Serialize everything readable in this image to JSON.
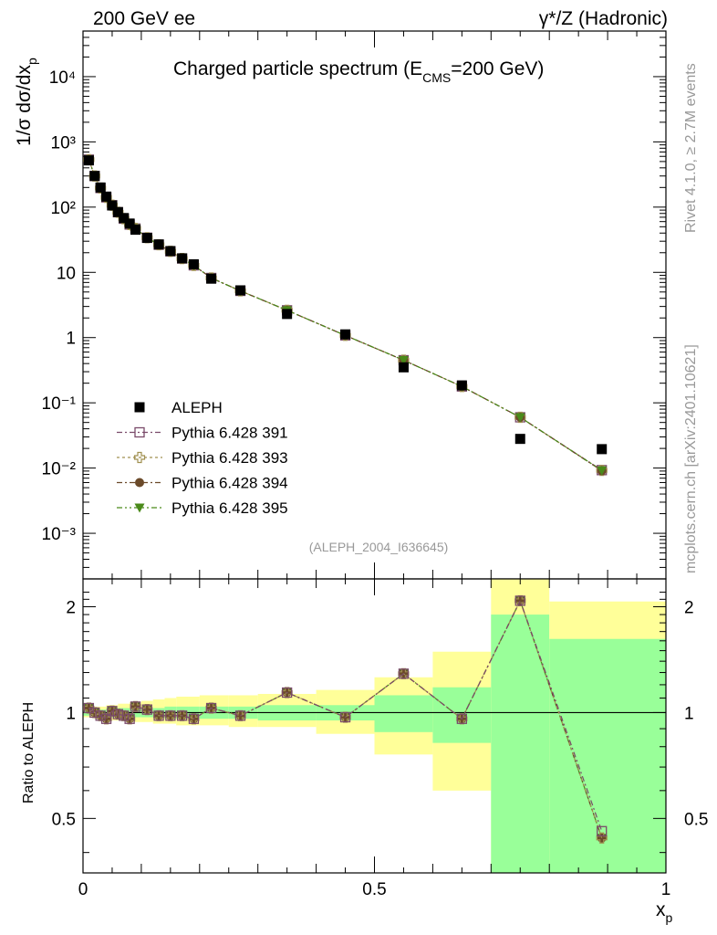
{
  "header": {
    "left": "200 GeV ee",
    "right": "γ*/Z (Hadronic)"
  },
  "side_labels": {
    "rivet": "Rivet 4.1.0, ≥ 2.7M events",
    "mcplots": "mcplots.cern.ch [arXiv:2401.10621]"
  },
  "chart_data": [
    {
      "type": "scatter",
      "title_main": "Charged particle spectrum (E",
      "title_sub": "CMS",
      "title_end": "=200 GeV)",
      "ylabel": "1/σ  dσ/dx",
      "ylabel_sub": "p",
      "watermark": "(ALEPH_2004_I636645)",
      "yscale": "log",
      "ylim": [
        0.0002,
        50000
      ],
      "xlim": [
        0,
        1
      ],
      "y_tick_labels": [
        "10⁻³",
        "10⁻²",
        "10⁻¹",
        "1",
        "10",
        "10²",
        "10³",
        "10⁴"
      ],
      "legend_position": "lower-left",
      "x": [
        0.01,
        0.02,
        0.03,
        0.04,
        0.05,
        0.06,
        0.07,
        0.08,
        0.09,
        0.11,
        0.13,
        0.15,
        0.17,
        0.19,
        0.22,
        0.27,
        0.35,
        0.45,
        0.55,
        0.65,
        0.75,
        0.89
      ],
      "series": [
        {
          "name": "ALEPH",
          "marker": "square-filled",
          "color": "#000000",
          "values": [
            520,
            300,
            200,
            145,
            106,
            84,
            68,
            56,
            45,
            33.7,
            26.8,
            21.2,
            16.4,
            13.3,
            8.0,
            5.3,
            2.3,
            1.12,
            0.35,
            0.185,
            0.028,
            0.0195
          ]
        },
        {
          "name": "Pythia 6.428 391",
          "marker": "square-open",
          "color": "#7a4a6a",
          "values": [
            535,
            300,
            196,
            141,
            107,
            83.5,
            66.5,
            54,
            47,
            34,
            26.5,
            21,
            16.3,
            12.8,
            8.2,
            5.2,
            2.62,
            1.08,
            0.45,
            0.178,
            0.06,
            0.0093
          ]
        },
        {
          "name": "Pythia 6.428 393",
          "marker": "cross-open",
          "color": "#a09050",
          "values": [
            535,
            300,
            196,
            141,
            107,
            83.5,
            66.5,
            54,
            47,
            34,
            26.5,
            21,
            16.3,
            12.8,
            8.2,
            5.2,
            2.62,
            1.08,
            0.45,
            0.178,
            0.06,
            0.0092
          ]
        },
        {
          "name": "Pythia 6.428 394",
          "marker": "circle-filled",
          "color": "#6b4a2a",
          "values": [
            535,
            300,
            196,
            141,
            107,
            83.5,
            66.5,
            54,
            47,
            34,
            26.5,
            21,
            16.3,
            12.8,
            8.2,
            5.2,
            2.62,
            1.08,
            0.45,
            0.178,
            0.06,
            0.0091
          ]
        },
        {
          "name": "Pythia 6.428 395",
          "marker": "triangle-down-filled",
          "color": "#4a8a1a",
          "values": [
            535,
            300,
            196,
            141,
            107,
            83.5,
            66.5,
            54,
            47,
            34,
            26.5,
            21,
            16.3,
            12.8,
            8.2,
            5.2,
            2.62,
            1.08,
            0.45,
            0.178,
            0.06,
            0.0092
          ]
        }
      ]
    },
    {
      "type": "scatter",
      "ylabel": "Ratio to ALEPH",
      "xlabel": "x",
      "xlabel_sub": "p",
      "yscale": "log",
      "ylim": [
        0.35,
        2.4
      ],
      "xlim": [
        0,
        1
      ],
      "y_ticks": [
        0.5,
        1,
        2
      ],
      "y_tick_labels": [
        "0.5",
        "1",
        "2"
      ],
      "x_ticks": [
        0,
        0.5,
        1
      ],
      "x_tick_labels": [
        "0",
        "0.5",
        "1"
      ],
      "x": [
        0.01,
        0.02,
        0.03,
        0.04,
        0.05,
        0.06,
        0.07,
        0.08,
        0.09,
        0.11,
        0.13,
        0.15,
        0.17,
        0.19,
        0.22,
        0.27,
        0.35,
        0.45,
        0.55,
        0.65,
        0.75,
        0.89
      ],
      "ratio_values": [
        1.03,
        1.0,
        0.98,
        0.96,
        1.01,
        0.99,
        0.98,
        0.96,
        1.04,
        1.02,
        0.98,
        0.98,
        0.98,
        0.96,
        1.03,
        0.98,
        1.14,
        0.97,
        1.29,
        0.96,
        2.08,
        0.44
      ],
      "ratio_values_391": [
        1.03,
        1.0,
        0.98,
        0.96,
        1.01,
        0.99,
        0.98,
        0.96,
        1.04,
        1.02,
        0.98,
        0.98,
        0.98,
        0.96,
        1.03,
        0.98,
        1.14,
        0.97,
        1.29,
        0.96,
        2.08,
        0.46
      ],
      "bands": {
        "x_edges": [
          0,
          0.02,
          0.04,
          0.06,
          0.08,
          0.1,
          0.12,
          0.14,
          0.16,
          0.18,
          0.2,
          0.25,
          0.3,
          0.4,
          0.5,
          0.6,
          0.7,
          0.8,
          1.0
        ],
        "inner_lo": [
          0.98,
          0.98,
          0.97,
          0.97,
          0.97,
          0.97,
          0.97,
          0.96,
          0.96,
          0.96,
          0.96,
          0.96,
          0.95,
          0.95,
          0.88,
          0.82,
          0.3,
          0.3
        ],
        "inner_hi": [
          1.02,
          1.02,
          1.03,
          1.03,
          1.03,
          1.03,
          1.03,
          1.04,
          1.04,
          1.04,
          1.04,
          1.04,
          1.05,
          1.05,
          1.12,
          1.18,
          1.9,
          1.62
        ],
        "outer_lo": [
          0.97,
          0.96,
          0.95,
          0.95,
          0.94,
          0.94,
          0.93,
          0.93,
          0.92,
          0.92,
          0.92,
          0.91,
          0.91,
          0.87,
          0.76,
          0.6,
          0.3,
          0.37
        ],
        "outer_hi": [
          1.03,
          1.04,
          1.05,
          1.06,
          1.07,
          1.08,
          1.09,
          1.1,
          1.11,
          1.11,
          1.12,
          1.12,
          1.13,
          1.16,
          1.26,
          1.49,
          2.4,
          2.07
        ],
        "inner_color": "#99ff99",
        "outer_color": "#ffff99"
      }
    }
  ]
}
